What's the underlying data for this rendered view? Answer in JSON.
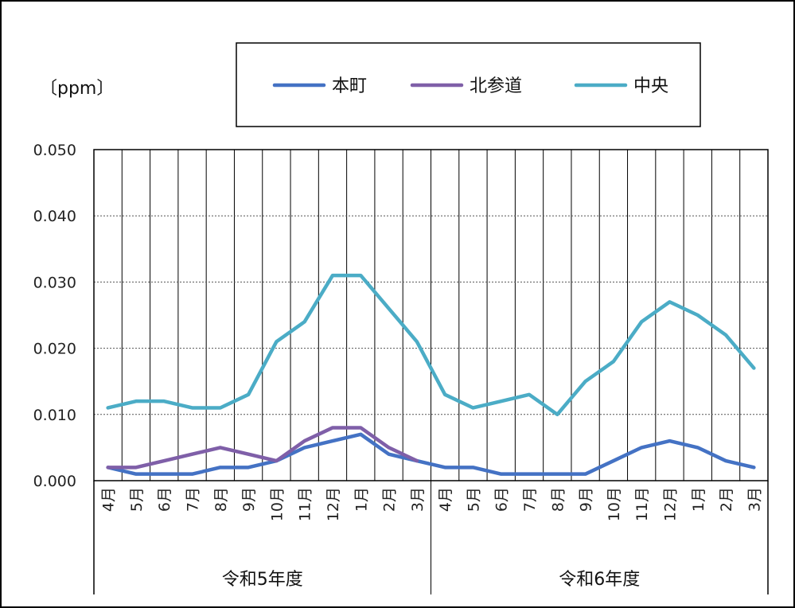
{
  "chart_data": {
    "type": "line",
    "unit_label": "〔ppm〕",
    "y_ticks": [
      "0.000",
      "0.010",
      "0.020",
      "0.030",
      "0.040",
      "0.050"
    ],
    "ylim": [
      0,
      0.05
    ],
    "month_labels": [
      "4月",
      "5月",
      "6月",
      "7月",
      "8月",
      "9月",
      "10月",
      "11月",
      "12月",
      "1月",
      "2月",
      "3月",
      "4月",
      "5月",
      "6月",
      "7月",
      "8月",
      "9月",
      "10月",
      "11月",
      "12月",
      "1月",
      "2月",
      "3月"
    ],
    "groups": [
      {
        "label": "令和5年度",
        "start": 0,
        "count": 12
      },
      {
        "label": "令和6年度",
        "start": 12,
        "count": 12
      }
    ],
    "legend_position": "top",
    "grid": {
      "horizontal": "dotted",
      "vertical": true
    },
    "series": [
      {
        "name": "本町",
        "color": "#4472C4",
        "values": [
          0.002,
          0.001,
          0.001,
          0.001,
          0.002,
          0.002,
          0.003,
          0.005,
          0.006,
          0.007,
          0.004,
          0.003,
          0.002,
          0.002,
          0.001,
          0.001,
          0.001,
          0.001,
          0.003,
          0.005,
          0.006,
          0.005,
          0.003,
          0.002
        ]
      },
      {
        "name": "北参道",
        "color": "#7F5FA8",
        "values": [
          0.002,
          0.002,
          0.003,
          0.004,
          0.005,
          0.004,
          0.003,
          0.006,
          0.008,
          0.008,
          0.005,
          0.003,
          null,
          null,
          null,
          null,
          null,
          null,
          null,
          null,
          null,
          null,
          null,
          null
        ]
      },
      {
        "name": "中央",
        "color": "#4BACC6",
        "values": [
          0.011,
          0.012,
          0.012,
          0.011,
          0.011,
          0.013,
          0.021,
          0.024,
          0.031,
          0.031,
          0.026,
          0.021,
          0.013,
          0.011,
          0.012,
          0.013,
          0.01,
          0.015,
          0.018,
          0.024,
          0.027,
          0.025,
          0.022,
          0.017
        ]
      }
    ]
  }
}
